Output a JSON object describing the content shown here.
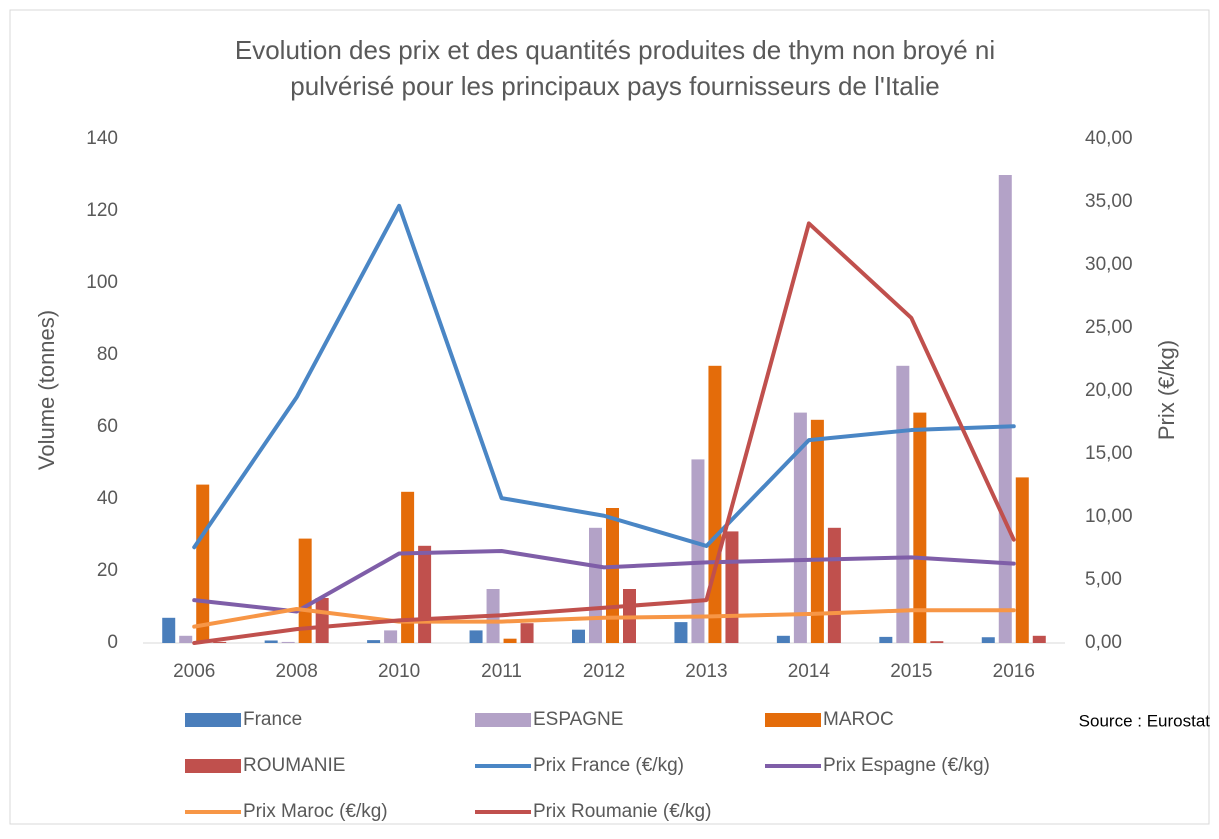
{
  "chart_data": {
    "type": "combo",
    "title": [
      "Evolution des prix et des quantités produites de thym non broyé ni",
      "pulvérisé pour les principaux pays fournisseurs de l'Italie"
    ],
    "ylabel": "Volume (tonnes)",
    "y2label": "Prix (€/kg)",
    "annotation": "Source : Eurostat",
    "categories": [
      "2006",
      "2008",
      "2010",
      "2011",
      "2012",
      "2013",
      "2014",
      "2015",
      "2016"
    ],
    "ylim": [
      0,
      140
    ],
    "yticks": [
      0,
      20,
      40,
      60,
      80,
      100,
      120,
      140
    ],
    "y2lim": [
      0,
      40
    ],
    "y2ticks": [
      {
        "value": 0,
        "label": "0,00"
      },
      {
        "value": 5,
        "label": "5,00"
      },
      {
        "value": 10,
        "label": "10,00"
      },
      {
        "value": 15,
        "label": "15,00"
      },
      {
        "value": 20,
        "label": "20,00"
      },
      {
        "value": 25,
        "label": "25,00"
      },
      {
        "value": 30,
        "label": "30,00"
      },
      {
        "value": 35,
        "label": "35,00"
      },
      {
        "value": 40,
        "label": "40,00"
      }
    ],
    "legend": "bottom",
    "series": [
      {
        "name": "France",
        "type": "bar",
        "color": "#4a7ebb",
        "values": [
          7,
          0.7,
          0.8,
          3.5,
          3.7,
          5.8,
          2,
          1.7,
          1.6
        ]
      },
      {
        "name": "ESPAGNE",
        "type": "bar",
        "color": "#b3a2c7",
        "values": [
          2,
          0.3,
          3.5,
          15,
          32,
          51,
          64,
          77,
          130
        ]
      },
      {
        "name": "MAROC",
        "type": "bar",
        "color": "#e46c0a",
        "values": [
          44,
          29,
          42,
          1.2,
          37.5,
          77,
          62,
          64,
          46
        ]
      },
      {
        "name": "ROUMANIE",
        "type": "bar",
        "color": "#c0504d",
        "values": [
          0.3,
          12.5,
          27,
          5.5,
          15,
          31,
          32,
          0.5,
          2
        ]
      },
      {
        "name": "Prix France (€/kg)",
        "type": "line",
        "axis": "y2",
        "color": "#4a86c5",
        "values": [
          7.6,
          19.5,
          34.7,
          11.5,
          10.1,
          7.7,
          16.1,
          16.9,
          17.2
        ]
      },
      {
        "name": "Prix Espagne (€/kg)",
        "type": "line",
        "axis": "y2",
        "color": "#7f5ea8",
        "values": [
          3.4,
          2.5,
          7.1,
          7.3,
          6.0,
          6.4,
          6.6,
          6.8,
          6.3
        ]
      },
      {
        "name": "Prix Maroc (€/kg)",
        "type": "line",
        "axis": "y2",
        "color": "#f79646",
        "values": [
          1.3,
          2.7,
          1.7,
          1.7,
          2.0,
          2.1,
          2.3,
          2.6,
          2.6
        ]
      },
      {
        "name": "Prix Roumanie (€/kg)",
        "type": "line",
        "axis": "y2",
        "color": "#c0504d",
        "values": [
          0,
          1.1,
          1.8,
          2.2,
          2.8,
          3.4,
          33.3,
          25.8,
          8.2
        ]
      }
    ]
  }
}
